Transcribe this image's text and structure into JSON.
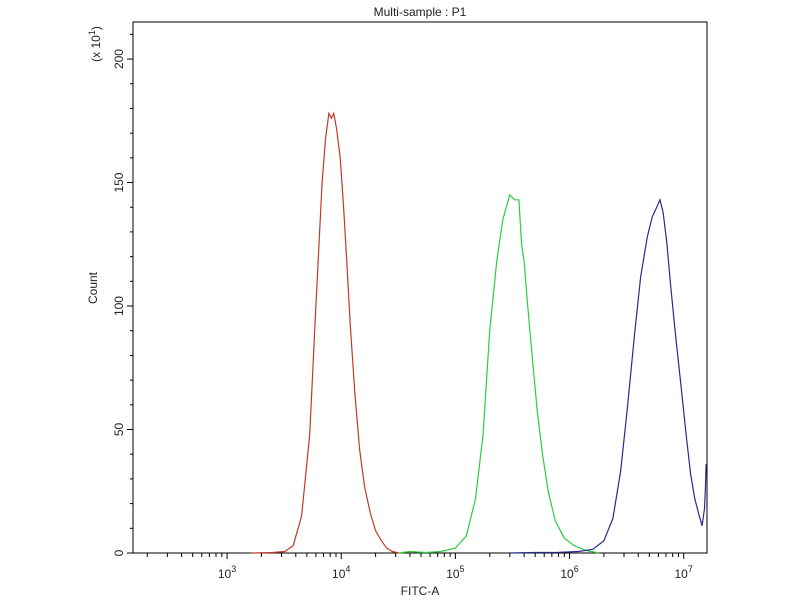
{
  "chart_data": {
    "type": "line",
    "title": "Multi-sample : P1",
    "xlabel": "FITC-A",
    "ylabel": "Count",
    "y_multiplier_label": "(x 10",
    "y_multiplier_exp": "1",
    "x_scale": "log",
    "xlim": [
      150,
      16000000
    ],
    "ylim": [
      0,
      215
    ],
    "grid": false,
    "x_ticks": [
      {
        "base": "10",
        "exp": "3",
        "value": 1000
      },
      {
        "base": "10",
        "exp": "4",
        "value": 10000
      },
      {
        "base": "10",
        "exp": "5",
        "value": 100000
      },
      {
        "base": "10",
        "exp": "6",
        "value": 1000000
      },
      {
        "base": "10",
        "exp": "7",
        "value": 10000000
      }
    ],
    "y_ticks": [
      {
        "label": "0",
        "value": 0
      },
      {
        "label": "50",
        "value": 50
      },
      {
        "label": "100",
        "value": 100
      },
      {
        "label": "150",
        "value": 150
      },
      {
        "label": "200",
        "value": 200
      }
    ],
    "series": [
      {
        "color": "#c0392b",
        "x": [
          1600,
          2500,
          3200,
          3800,
          4500,
          5300,
          6000,
          6800,
          7300,
          7800,
          8200,
          8600,
          9100,
          9800,
          10500,
          11200,
          12000,
          13200,
          14500,
          16000,
          18000,
          20000,
          22500,
          25000,
          28000,
          32000
        ],
        "y": [
          0,
          0.2,
          0.6,
          3,
          15,
          48,
          100,
          150,
          168,
          178,
          176,
          178,
          172,
          160,
          140,
          118,
          92,
          64,
          42,
          27,
          16,
          9,
          5,
          2,
          0.6,
          0
        ]
      },
      {
        "color": "#2ecc40",
        "x": [
          32000,
          40000,
          55000,
          75000,
          100000,
          125000,
          150000,
          175000,
          200000,
          230000,
          260000,
          300000,
          330000,
          360000,
          380000,
          400000,
          430000,
          470000,
          520000,
          580000,
          650000,
          750000,
          900000,
          1100000,
          1400000,
          1800000
        ],
        "y": [
          0,
          0.6,
          0.2,
          0.6,
          2,
          7,
          22,
          48,
          90,
          118,
          135,
          145,
          143,
          143,
          125,
          118,
          100,
          80,
          58,
          40,
          25,
          13,
          6,
          3,
          1,
          0
        ]
      },
      {
        "color": "#2a2a8c",
        "x": [
          300000,
          500000,
          800000,
          1200000,
          1600000,
          2000000,
          2400000,
          2800000,
          3200000,
          3700000,
          4200000,
          4800000,
          5300000,
          5800000,
          6200000,
          6600000,
          7100000,
          7700000,
          8500000,
          9500000,
          10500000,
          11500000,
          12500000,
          13500000,
          14500000,
          15200000,
          15500000,
          15700000
        ],
        "y": [
          0,
          0.2,
          0.3,
          0.6,
          1.5,
          5,
          14,
          33,
          58,
          88,
          112,
          128,
          136,
          140,
          143,
          138,
          126,
          108,
          88,
          67,
          48,
          32,
          22,
          16,
          11,
          18,
          26,
          36
        ]
      }
    ]
  }
}
